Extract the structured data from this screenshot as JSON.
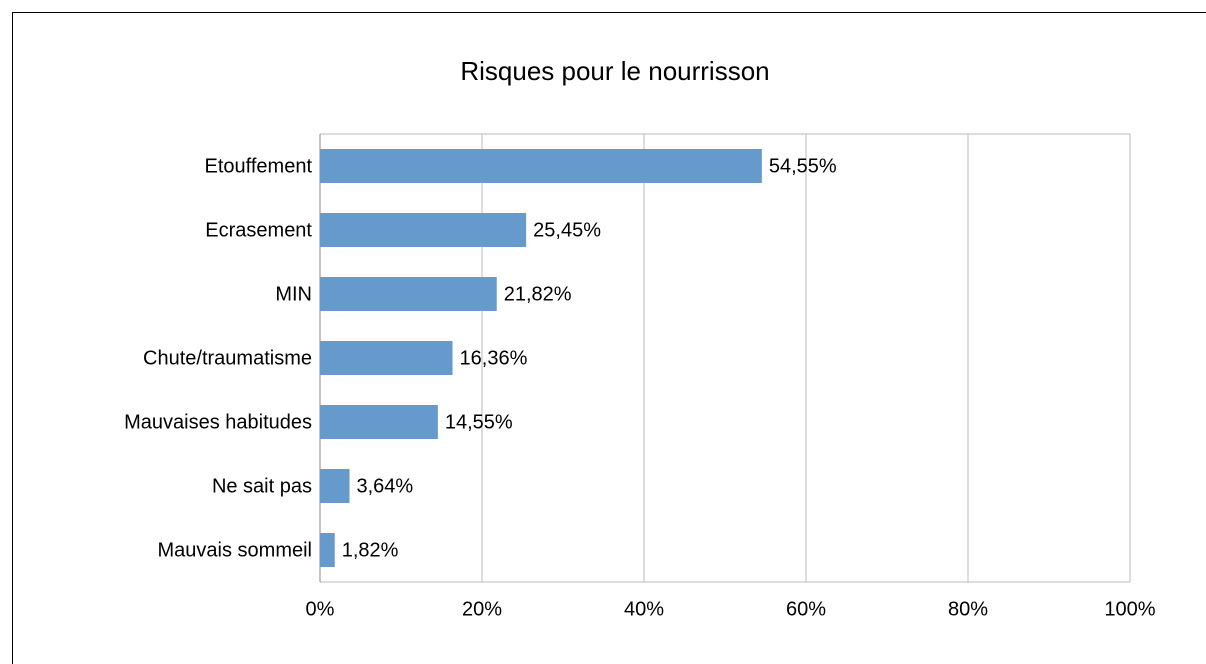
{
  "chart_data": {
    "type": "bar",
    "orientation": "horizontal",
    "title": "Risques pour le nourrisson",
    "categories": [
      "Etouffement",
      "Ecrasement",
      "MIN",
      "Chute/traumatisme",
      "Mauvaises habitudes",
      "Ne sait pas",
      "Mauvais sommeil"
    ],
    "values": [
      54.55,
      25.45,
      21.82,
      16.36,
      14.55,
      3.64,
      1.82
    ],
    "value_labels": [
      "54,55%",
      "25,45%",
      "21,82%",
      "16,36%",
      "14,55%",
      "3,64%",
      "1,82%"
    ],
    "color": "#6699cc",
    "xlim": [
      0,
      100
    ],
    "xticks": [
      {
        "value": 0,
        "label": "0%"
      },
      {
        "value": 20,
        "label": "20%"
      },
      {
        "value": 40,
        "label": "40%"
      },
      {
        "value": 60,
        "label": "60%"
      },
      {
        "value": 80,
        "label": "80%"
      },
      {
        "value": 100,
        "label": "100%"
      }
    ],
    "grid": true
  }
}
